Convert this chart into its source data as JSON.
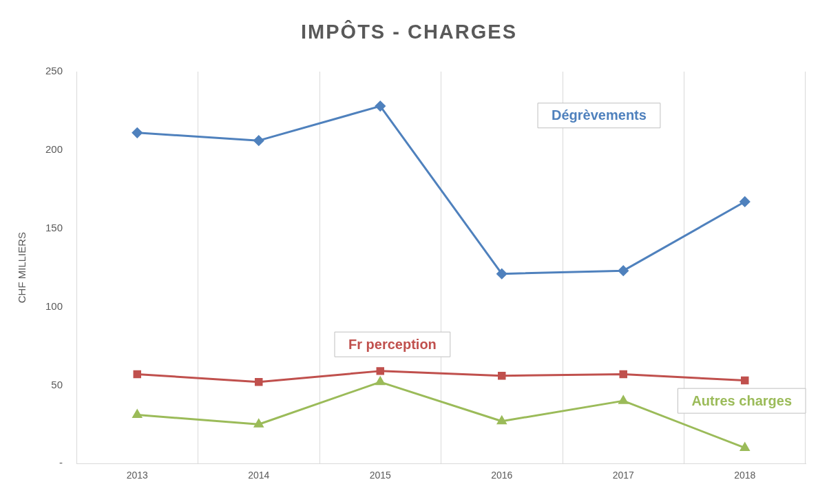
{
  "chart_data": {
    "type": "line",
    "title": "IMPÔTS - CHARGES",
    "ylabel": "CHF MILLIERS",
    "categories": [
      "2013",
      "2014",
      "2015",
      "2016",
      "2017",
      "2018"
    ],
    "series": [
      {
        "name": "Dégrèvements",
        "color": "#4f81bd",
        "marker": "diamond",
        "values": [
          211,
          206,
          228,
          121,
          123,
          167
        ]
      },
      {
        "name": "Fr perception",
        "color": "#c0504d",
        "marker": "square",
        "values": [
          57,
          52,
          59,
          56,
          57,
          53
        ]
      },
      {
        "name": "Autres charges",
        "color": "#9bbb59",
        "marker": "triangle",
        "values": [
          31,
          25,
          52,
          27,
          40,
          10
        ]
      }
    ],
    "ylim": [
      0,
      250
    ],
    "yticks": [
      {
        "value": 0,
        "label": "-"
      },
      50,
      100,
      150,
      200,
      250
    ],
    "grid": "x",
    "legend": false
  }
}
